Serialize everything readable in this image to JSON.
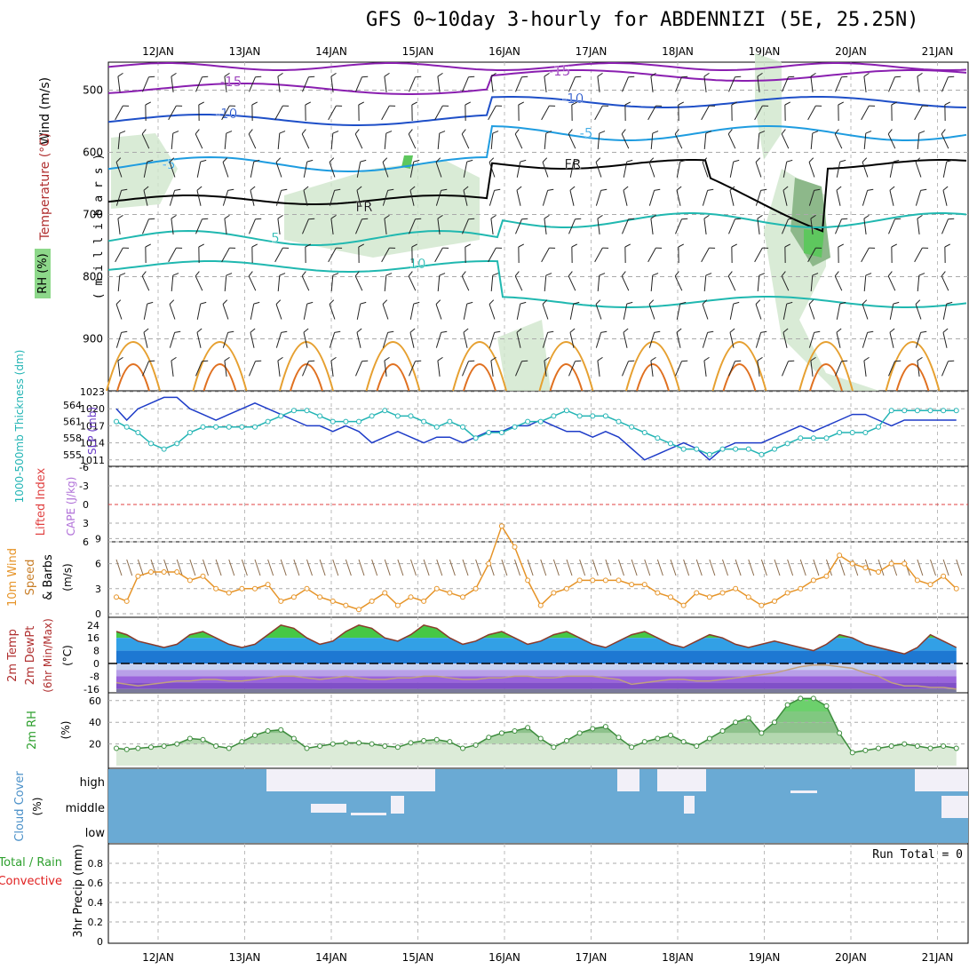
{
  "title": "GFS 0~10day 3-hourly for ABDENNIZI (5E, 25.25N)",
  "days": [
    "12JAN",
    "13JAN",
    "14JAN",
    "15JAN",
    "16JAN",
    "17JAN",
    "18JAN",
    "19JAN",
    "20JAN",
    "21JAN"
  ],
  "run_total": "Run Total = 0",
  "colors": {
    "grid": "#aaaaaa",
    "slp": "#1e3cc8",
    "thick": "#22b4b4",
    "wind": "#e69428",
    "temp": "#3c8c3c",
    "rh": "#2ea02e",
    "cloud": "#6aaad4",
    "cloud_patch": "#f2f0f8",
    "convective": "#e02020",
    "li_zero": "#e04040"
  },
  "chart_data": [
    {
      "type": "heatmap",
      "name": "upper-air",
      "y_title": "( m i l l i b a r s )",
      "ylabel_temp": "Temperature (°C)",
      "ylabel_wind": "Wind (m/s)",
      "ylabel_rh": "RH (%)",
      "yticks": [
        500,
        600,
        700,
        800,
        900
      ],
      "contour_labels": [
        "-15",
        "-15",
        "-10",
        "-10",
        "-5",
        "-5",
        "-5",
        "FR",
        "FR",
        "5",
        "10"
      ]
    },
    {
      "type": "line",
      "name": "slp-thickness",
      "ylabel_left": "1000-500mb Thickness (dm)",
      "ylabel_right": "SLP (mb)",
      "left_ticks": [
        "564",
        "561",
        "558",
        "555"
      ],
      "right_ticks": [
        "1023",
        "1020",
        "1017",
        "1014",
        "1011"
      ],
      "x": [
        11.6,
        11.72,
        11.85,
        12.0,
        12.15,
        12.3,
        12.45,
        12.6,
        12.75,
        12.9,
        13.05,
        13.2,
        13.35,
        13.5,
        13.65,
        13.8,
        13.95,
        14.1,
        14.25,
        14.4,
        14.55,
        14.7,
        14.85,
        15.0,
        15.15,
        15.3,
        15.45,
        15.6,
        15.75,
        15.9,
        16.05,
        16.2,
        16.35,
        16.5,
        16.65,
        16.8,
        16.95,
        17.1,
        17.25,
        17.4,
        17.55,
        17.7,
        17.85,
        18.0,
        18.15,
        18.3,
        18.45,
        18.6,
        18.75,
        18.9,
        19.05,
        19.2,
        19.35,
        19.5,
        19.65,
        19.8,
        19.95,
        20.1,
        20.25,
        20.4,
        20.55,
        20.7,
        20.85,
        21.0,
        21.15,
        21.3
      ],
      "series": [
        {
          "name": "SLP",
          "values": [
            1020,
            1018,
            1020,
            1021,
            1022,
            1022,
            1020,
            1019,
            1018,
            1019,
            1020,
            1021,
            1020,
            1019,
            1018,
            1017,
            1017,
            1016,
            1017,
            1016,
            1014,
            1015,
            1016,
            1015,
            1014,
            1015,
            1015,
            1014,
            1015,
            1016,
            1016,
            1017,
            1017,
            1018,
            1017,
            1016,
            1016,
            1015,
            1016,
            1015,
            1013,
            1011,
            1012,
            1013,
            1014,
            1013,
            1011,
            1013,
            1014,
            1014,
            1014,
            1015,
            1016,
            1017,
            1016,
            1017,
            1018,
            1019,
            1019,
            1018,
            1017,
            1018,
            1018,
            1018,
            1018,
            1018
          ]
        },
        {
          "name": "Thickness",
          "values": [
            561,
            560,
            559,
            557,
            556,
            557,
            559,
            560,
            560,
            560,
            560,
            560,
            561,
            562,
            563,
            563,
            562,
            561,
            561,
            561,
            562,
            563,
            562,
            562,
            561,
            560,
            561,
            560,
            558,
            559,
            559,
            560,
            561,
            561,
            562,
            563,
            562,
            562,
            562,
            561,
            560,
            559,
            558,
            557,
            556,
            556,
            555,
            556,
            556,
            556,
            555,
            556,
            557,
            558,
            558,
            558,
            559,
            559,
            559,
            560,
            563,
            563,
            563,
            563,
            563,
            563
          ]
        }
      ]
    },
    {
      "type": "line",
      "name": "stability",
      "ylabel_left": "Lifted Index",
      "ylabel_right": "CAPE (J/kg)",
      "left_ticks": [
        "-6",
        "-3",
        "0",
        "3",
        "6"
      ],
      "series": [
        {
          "name": "Lifted Index",
          "values": []
        }
      ]
    },
    {
      "type": "line",
      "name": "surface-wind",
      "ylabel": "10m Wind Speed & Barbs (m/s)",
      "ylabel_parts": [
        "10m Wind",
        "Speed",
        "& Barbs"
      ],
      "unit": "(m/s)",
      "yticks": [
        "0",
        "3",
        "6",
        "9"
      ],
      "ylim": [
        0,
        10
      ],
      "series": [
        {
          "name": "Speed",
          "values": [
            2,
            1.5,
            4.5,
            5,
            5,
            5,
            4,
            4.5,
            3,
            2.5,
            3,
            3,
            3.5,
            1.5,
            2,
            3,
            2,
            1.5,
            1,
            0.5,
            1.5,
            2.5,
            1,
            2,
            1.5,
            3,
            2.5,
            2,
            3,
            6,
            10.5,
            8,
            4,
            1,
            2.5,
            3,
            4,
            4,
            4,
            4,
            3.5,
            3.5,
            2.5,
            2,
            1,
            2.5,
            2,
            2.5,
            3,
            2,
            1,
            1.5,
            2.5,
            3,
            4,
            4.5,
            7,
            6,
            5.5,
            5,
            6,
            6,
            4,
            3.5,
            4.5,
            3
          ]
        }
      ]
    },
    {
      "type": "area",
      "name": "temperature",
      "ylabel": "2m Temp 2m DewPt (6hr Min/Max) (°C)",
      "ylabel_parts": [
        "2m Temp",
        "2m DewPt",
        "(6hr Min/Max)",
        "(°C)"
      ],
      "yticks": [
        "24",
        "16",
        "8",
        "0",
        "-8",
        "-16"
      ],
      "ylim": [
        -20,
        28
      ],
      "series": [
        {
          "name": "Temp",
          "values": [
            20,
            18,
            14,
            12,
            10,
            12,
            18,
            20,
            16,
            12,
            10,
            12,
            18,
            24,
            22,
            16,
            12,
            14,
            20,
            24,
            22,
            16,
            14,
            18,
            24,
            22,
            16,
            12,
            14,
            18,
            20,
            16,
            12,
            14,
            18,
            20,
            16,
            12,
            10,
            14,
            18,
            20,
            16,
            12,
            10,
            14,
            18,
            16,
            12,
            10,
            12,
            14,
            12,
            10,
            8,
            12,
            18,
            16,
            12,
            10,
            8,
            6,
            10,
            18,
            14,
            10
          ]
        },
        {
          "name": "DewPt",
          "values": [
            -12,
            -13,
            -14,
            -13,
            -12,
            -11,
            -11,
            -10,
            -10,
            -11,
            -11,
            -10,
            -9,
            -8,
            -8,
            -9,
            -10,
            -9,
            -8,
            -9,
            -10,
            -10,
            -9,
            -9,
            -8,
            -8,
            -9,
            -10,
            -10,
            -9,
            -9,
            -8,
            -8,
            -9,
            -9,
            -8,
            -8,
            -8,
            -9,
            -10,
            -13,
            -12,
            -11,
            -10,
            -10,
            -11,
            -11,
            -10,
            -9,
            -8,
            -7,
            -6,
            -4,
            -2,
            -1,
            -1,
            -2,
            -3,
            -6,
            -8,
            -12,
            -14,
            -14,
            -15,
            -15,
            -16
          ]
        }
      ]
    },
    {
      "type": "area",
      "name": "relative-humidity",
      "ylabel": "2m RH (%)",
      "ylabel_parts": [
        "2m RH",
        "(%)"
      ],
      "yticks": [
        "60",
        "40",
        "20"
      ],
      "ylim": [
        0,
        65
      ],
      "series": [
        {
          "name": "RH",
          "values": [
            16,
            15,
            16,
            17,
            18,
            20,
            25,
            24,
            18,
            16,
            22,
            28,
            32,
            33,
            25,
            16,
            18,
            20,
            21,
            21,
            20,
            18,
            17,
            21,
            23,
            24,
            22,
            16,
            19,
            26,
            30,
            32,
            35,
            25,
            17,
            23,
            30,
            34,
            36,
            26,
            17,
            22,
            25,
            28,
            22,
            18,
            25,
            32,
            40,
            44,
            30,
            40,
            56,
            62,
            62,
            55,
            30,
            12,
            14,
            16,
            18,
            20,
            18,
            16,
            18,
            16
          ]
        }
      ]
    },
    {
      "type": "area",
      "name": "cloud-cover",
      "ylabel": "Cloud Cover (%)",
      "ylabel_parts": [
        "Cloud Cover",
        "(%)"
      ],
      "rows": [
        "high",
        "middle",
        "low"
      ]
    },
    {
      "type": "bar",
      "name": "precipitation",
      "ylabel": "3hr Precip (mm)",
      "legend": [
        "Total / Rain",
        "Convective"
      ],
      "yticks": [
        "0.8",
        "0.6",
        "0.4",
        "0.2",
        "0"
      ],
      "ylim": [
        0,
        1
      ],
      "values": []
    }
  ]
}
